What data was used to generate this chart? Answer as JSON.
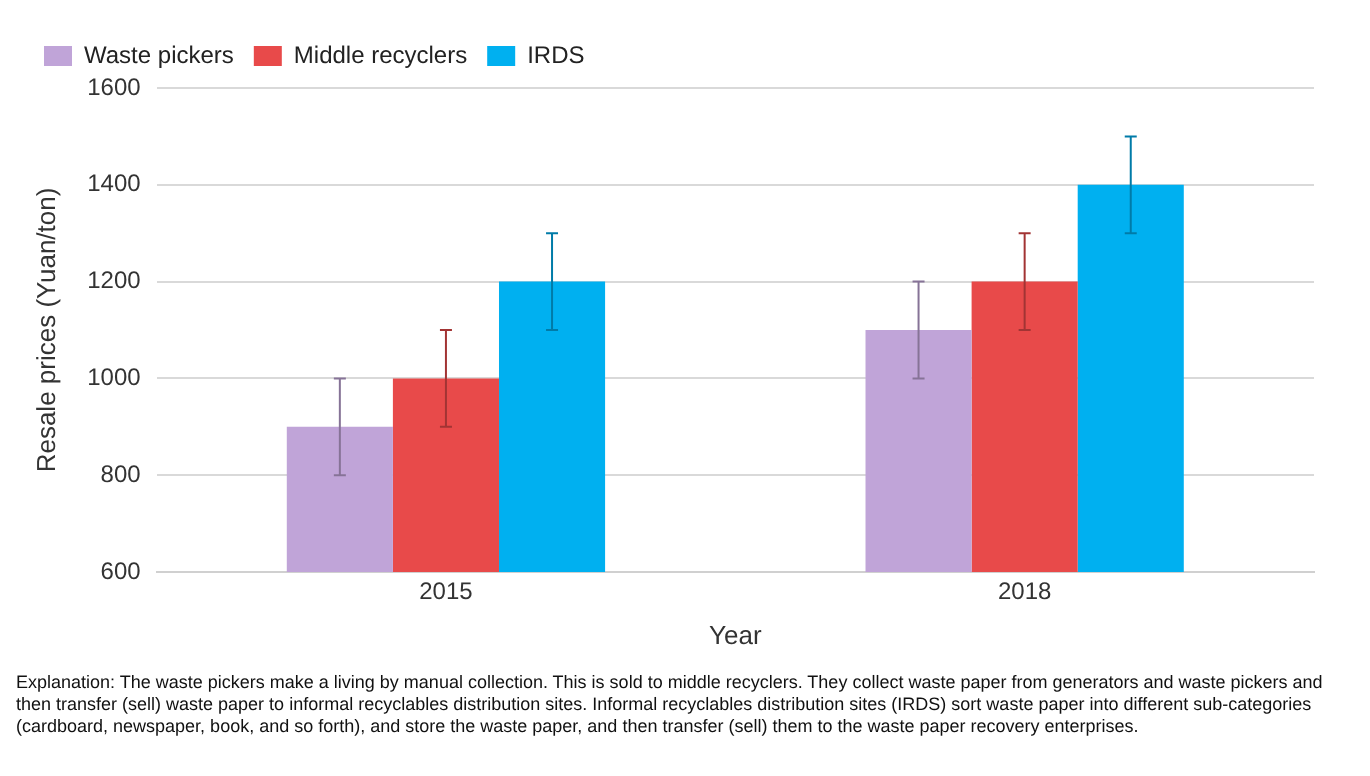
{
  "chart_data": {
    "type": "bar",
    "xlabel": "Year",
    "ylabel": "Resale prices (Yuan/ton)",
    "categories": [
      "2015",
      "2018"
    ],
    "series": [
      {
        "name": "Waste pickers",
        "color": "#c0a4d8",
        "values": [
          900,
          1100
        ],
        "errors": [
          100,
          100
        ]
      },
      {
        "name": "Middle recyclers",
        "color": "#e84a4a",
        "values": [
          1000,
          1200
        ],
        "errors": [
          100,
          100
        ]
      },
      {
        "name": "IRDS",
        "color": "#00b0f0",
        "values": [
          1200,
          1400
        ],
        "errors": [
          100,
          100
        ]
      }
    ],
    "ylim": [
      600,
      1600
    ],
    "yticks": [
      600,
      800,
      1000,
      1200,
      1400,
      1600
    ],
    "grid": "y",
    "legend": "top left",
    "annotations": [
      "Explanation: The waste pickers make a living by manual collection. This is sold to middle recyclers. They collect waste paper from generators and waste pickers and then transfer (sell) waste paper to informal recyclables distribution sites. Informal recyclables distribution sites (IRDS) sort waste paper into different sub-categories (cardboard, newspaper, book, and so forth), and store the waste paper, and then transfer (sell) them to the waste paper recovery enterprises."
    ]
  }
}
